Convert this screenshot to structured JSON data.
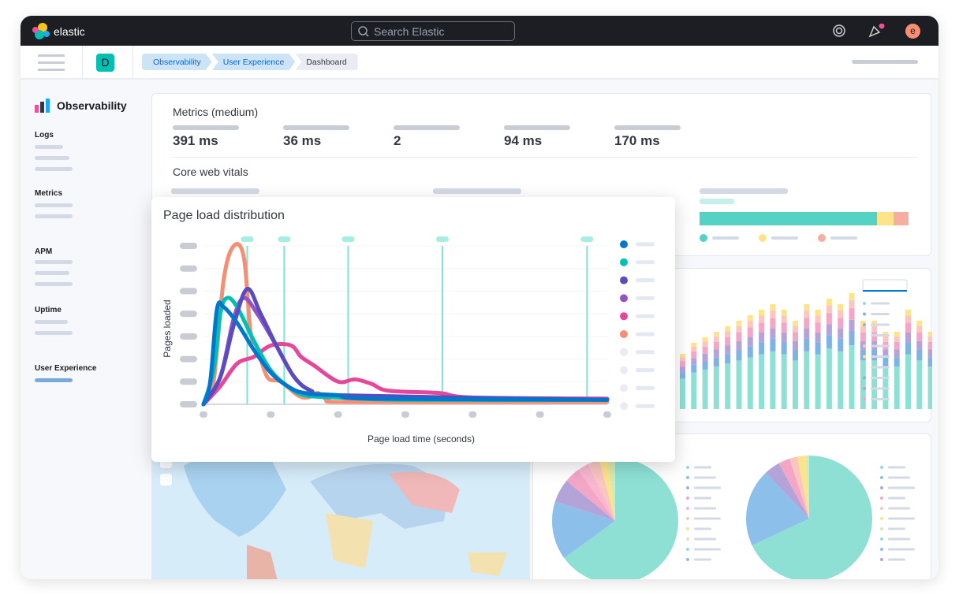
{
  "header": {
    "brand": "elastic",
    "search_placeholder": "Search Elastic",
    "avatar_initial": "e"
  },
  "subheader": {
    "space_initial": "D",
    "breadcrumbs": [
      "Observability",
      "User Experience",
      "Dashboard"
    ]
  },
  "sidebar": {
    "title": "Observability",
    "sections": [
      "Logs",
      "Metrics",
      "APM",
      "Uptime",
      "User Experience"
    ],
    "active": "User Experience"
  },
  "metrics": {
    "title": "Metrics (medium)",
    "values": [
      "391 ms",
      "36 ms",
      "2",
      "94 ms",
      "170 ms"
    ]
  },
  "core_web_vitals": {
    "title": "Core web vitals",
    "bar_segments": [
      {
        "color": "#54d3c5",
        "fraction": 0.85
      },
      {
        "color": "#fde48a",
        "fraction": 0.08
      },
      {
        "color": "#f7aea0",
        "fraction": 0.07
      }
    ]
  },
  "colors": {
    "accent": "#0b64dd",
    "header_bg": "#1d1e24",
    "teal": "#54d3c5"
  },
  "chart_data": {
    "type": "line",
    "title": "Page load distribution",
    "xlabel": "Page load time (seconds)",
    "ylabel": "Pages loaded",
    "xlim": [
      0,
      12
    ],
    "ylim": [
      0,
      7
    ],
    "grid": true,
    "legend": "right",
    "percentile_markers": [
      1.3,
      2.4,
      4.3,
      7.1,
      11.4
    ],
    "series": [
      {
        "color": "#f58e72",
        "points": [
          [
            0,
            0
          ],
          [
            0.3,
            1
          ],
          [
            0.6,
            5.5
          ],
          [
            0.9,
            7
          ],
          [
            1.2,
            6.5
          ],
          [
            1.4,
            3.2
          ],
          [
            1.6,
            2.5
          ],
          [
            1.9,
            1.2
          ],
          [
            2.3,
            1.0
          ],
          [
            2.8,
            0.4
          ],
          [
            3.1,
            0.3
          ],
          [
            3.4,
            0.5
          ],
          [
            3.7,
            0.2
          ],
          [
            4.5,
            0.1
          ],
          [
            12,
            0.1
          ]
        ]
      },
      {
        "color": "#e7479a",
        "points": [
          [
            0,
            0
          ],
          [
            0.5,
            0.8
          ],
          [
            1,
            1.8
          ],
          [
            1.5,
            2.1
          ],
          [
            2,
            2.6
          ],
          [
            2.6,
            2.6
          ],
          [
            2.9,
            2.1
          ],
          [
            3.3,
            1.7
          ],
          [
            4,
            1.0
          ],
          [
            4.5,
            1.1
          ],
          [
            5,
            0.9
          ],
          [
            5.5,
            0.6
          ],
          [
            7,
            0.5
          ],
          [
            8,
            0.3
          ],
          [
            12,
            0.25
          ]
        ]
      },
      {
        "color": "#9653c2",
        "points": [
          [
            0,
            0
          ],
          [
            0.5,
            1.2
          ],
          [
            0.9,
            3.8
          ],
          [
            1.2,
            4.7
          ],
          [
            1.6,
            4.0
          ],
          [
            2.2,
            2.5
          ],
          [
            2.7,
            1.2
          ],
          [
            3.2,
            0.6
          ],
          [
            4,
            0.35
          ],
          [
            12,
            0.2
          ]
        ]
      },
      {
        "color": "#00bfb3",
        "points": [
          [
            0,
            0
          ],
          [
            0.3,
            1.5
          ],
          [
            0.5,
            4
          ],
          [
            0.7,
            4.7
          ],
          [
            1.0,
            4.3
          ],
          [
            1.5,
            2.8
          ],
          [
            2,
            1.5
          ],
          [
            2.5,
            0.8
          ],
          [
            3,
            0.4
          ],
          [
            4,
            0.3
          ],
          [
            6,
            0.2
          ],
          [
            12,
            0.2
          ]
        ]
      },
      {
        "color": "#5a4cc0",
        "points": [
          [
            0,
            0
          ],
          [
            0.5,
            1.2
          ],
          [
            0.9,
            3.5
          ],
          [
            1.3,
            5.1
          ],
          [
            1.7,
            4
          ],
          [
            2.2,
            2.5
          ],
          [
            2.7,
            1.2
          ],
          [
            3.2,
            0.6
          ],
          [
            4,
            0.4
          ],
          [
            12,
            0.2
          ]
        ]
      },
      {
        "color": "#0077cc",
        "points": [
          [
            0,
            0
          ],
          [
            0.2,
            1
          ],
          [
            0.4,
            4.2
          ],
          [
            0.6,
            4.3
          ],
          [
            1,
            3.6
          ],
          [
            1.5,
            2.4
          ],
          [
            2,
            1.4
          ],
          [
            2.5,
            0.8
          ],
          [
            3,
            0.5
          ],
          [
            4,
            0.4
          ],
          [
            5,
            0.25
          ],
          [
            12,
            0.2
          ]
        ]
      }
    ],
    "legend_colors": [
      "#0077cc",
      "#00bfb3",
      "#5a4cc0",
      "#9653c2",
      "#e7479a",
      "#f58e72",
      "#e9edf3",
      "#e9edf3",
      "#e9edf3",
      "#e9edf3"
    ]
  },
  "bar_chart": {
    "totals": [
      5,
      6,
      6.5,
      7,
      7.5,
      8,
      8.5,
      9,
      9.5,
      9,
      8,
      9.5,
      9,
      10,
      9.5,
      10.5,
      8,
      8,
      7,
      7,
      9,
      8,
      7
    ],
    "stack_colors": [
      "#8ee0d5",
      "#7fb3e6",
      "#b3a3d8",
      "#f4a6c7",
      "#f9c6c0",
      "#fde48a"
    ]
  },
  "pies": [
    {
      "values": [
        65,
        15,
        6,
        4,
        3,
        3,
        2,
        2
      ],
      "colors": [
        "#8ee0d5",
        "#8cbfe9",
        "#b3a3d8",
        "#f4a6c7",
        "#f7b7d0",
        "#f9c6c0",
        "#fde48a",
        "#d9e9b0"
      ]
    },
    {
      "values": [
        68,
        20,
        4,
        3,
        2,
        2,
        1
      ],
      "colors": [
        "#8ee0d5",
        "#8cbfe9",
        "#b3a3d8",
        "#f4a6c7",
        "#f9c6c0",
        "#fde48a",
        "#d9e9b0"
      ]
    }
  ]
}
